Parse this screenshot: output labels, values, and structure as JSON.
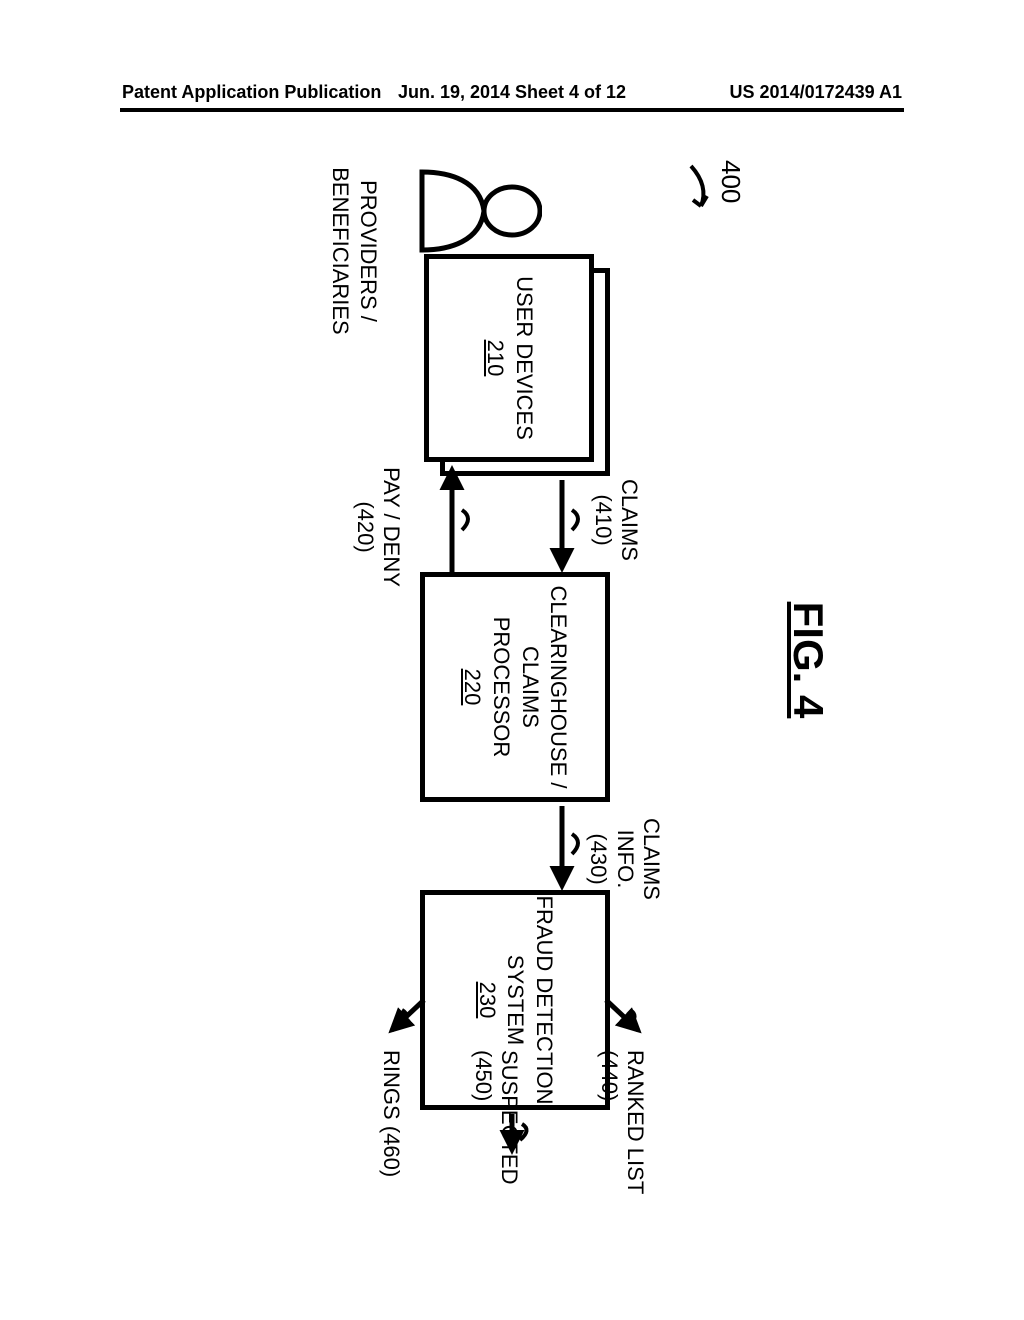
{
  "header": {
    "left": "Patent Application Publication",
    "center": "Jun. 19, 2014  Sheet 4 of 12",
    "right": "US 2014/0172439 A1"
  },
  "figure": {
    "title": "FIG. 4",
    "ref": "400"
  },
  "user_icon_label": "PROVIDERS /\nBENEFICIARIES",
  "boxes": {
    "user_devices": {
      "label": "USER DEVICES",
      "ref": "210"
    },
    "clearinghouse": {
      "label": "CLEARINGHOUSE /\nCLAIMS\nPROCESSOR",
      "ref": "220"
    },
    "fraud": {
      "label": "FRAUD DETECTION\nSYSTEM",
      "ref": "230"
    }
  },
  "arrows": {
    "claims": {
      "label": "CLAIMS (410)"
    },
    "pay_deny": {
      "label": "PAY / DENY (420)"
    },
    "claims_info": {
      "label": "CLAIMS INFO.\n(430)"
    },
    "ranked": {
      "label": "RANKED LIST (440)"
    },
    "suspected": {
      "label": "SUSPECTED (450)"
    },
    "rings": {
      "label": "RINGS (460)"
    }
  },
  "style": {
    "stroke": "#000000",
    "stroke_width": 5,
    "box_border_width": 5,
    "font_family": "Arial",
    "background": "#ffffff"
  }
}
